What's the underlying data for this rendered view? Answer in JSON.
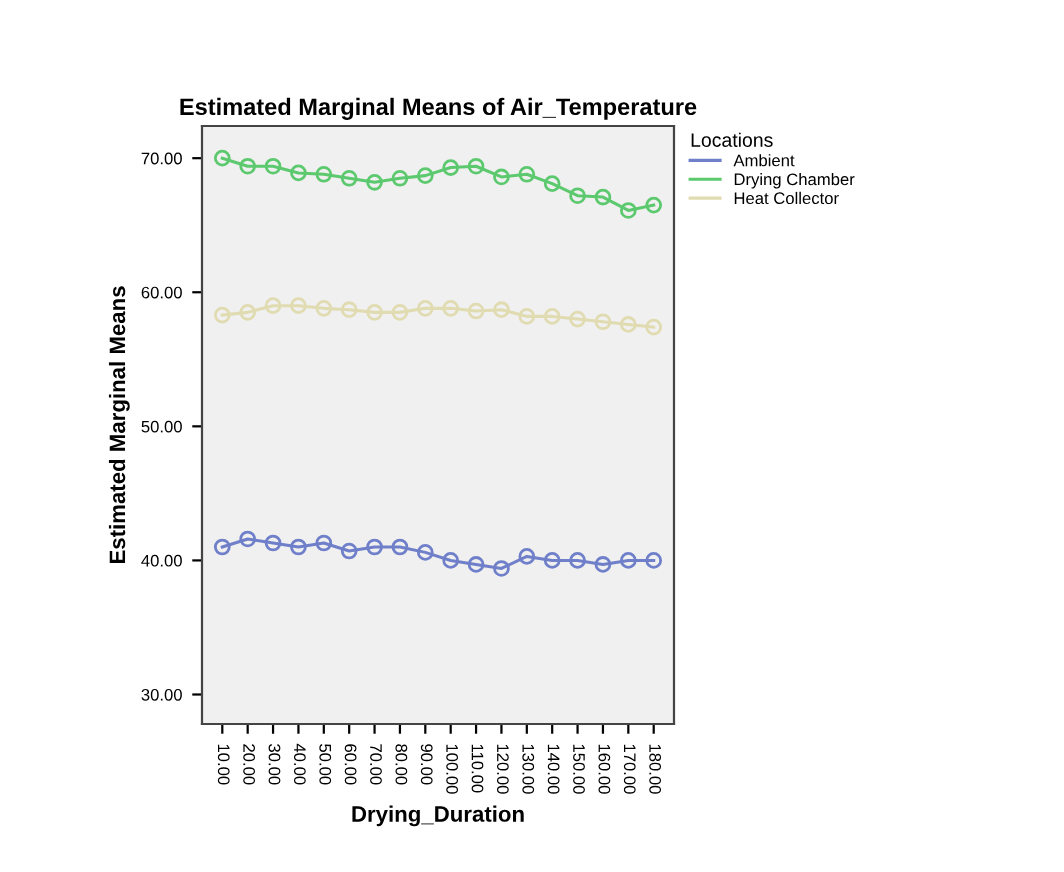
{
  "chart_data": {
    "type": "line",
    "title": "Estimated Marginal Means of Air_Temperature",
    "xlabel": "Drying_Duration",
    "ylabel": "Estimated Marginal Means",
    "legend_title": "Locations",
    "legend": "right",
    "marker": "circle",
    "line_style": "solid",
    "grid": false,
    "categories": [
      "10.00",
      "20.00",
      "30.00",
      "40.00",
      "50.00",
      "60.00",
      "70.00",
      "80.00",
      "90.00",
      "100.00",
      "110.00",
      "120.00",
      "130.00",
      "140.00",
      "150.00",
      "160.00",
      "170.00",
      "180.00"
    ],
    "ylim": [
      27.8,
      72.4
    ],
    "yticks": [
      {
        "value": 30,
        "label": "30.00"
      },
      {
        "value": 40,
        "label": "40.00"
      },
      {
        "value": 50,
        "label": "50.00"
      },
      {
        "value": 60,
        "label": "60.00"
      },
      {
        "value": 70,
        "label": "70.00"
      }
    ],
    "series": [
      {
        "name": "Ambient",
        "color": "#6f7fc9",
        "values": [
          41.0,
          41.6,
          41.3,
          41.0,
          41.3,
          40.7,
          41.0,
          41.0,
          40.6,
          40.0,
          39.7,
          39.4,
          40.3,
          40.0,
          40.0,
          39.7,
          40.0,
          40.0
        ]
      },
      {
        "name": "Drying Chamber",
        "color": "#5cc96e",
        "values": [
          70.0,
          69.4,
          69.4,
          68.9,
          68.8,
          68.5,
          68.2,
          68.5,
          68.7,
          69.3,
          69.4,
          68.6,
          68.8,
          68.1,
          67.2,
          67.1,
          66.1,
          66.5
        ]
      },
      {
        "name": "Heat Collector",
        "color": "#e0dbb0",
        "values": [
          58.3,
          58.5,
          59.0,
          59.0,
          58.8,
          58.7,
          58.5,
          58.5,
          58.8,
          58.8,
          58.6,
          58.7,
          58.2,
          58.2,
          58.0,
          57.8,
          57.6,
          57.4
        ]
      }
    ]
  }
}
